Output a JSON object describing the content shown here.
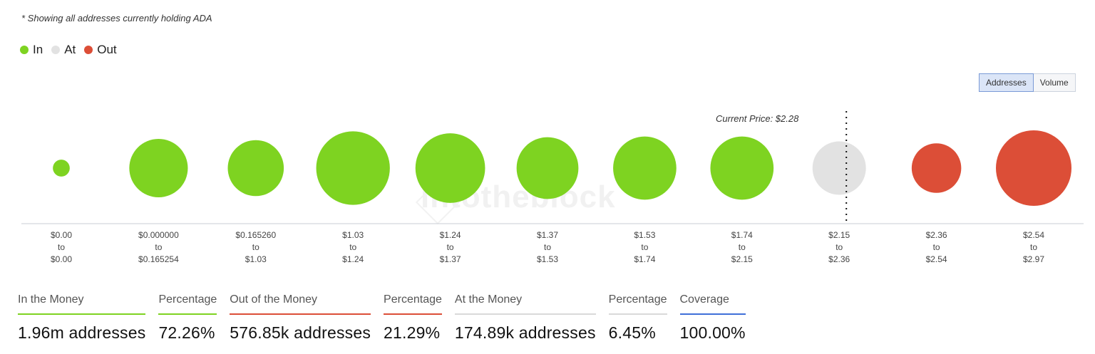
{
  "note": "* Showing all addresses currently holding ADA",
  "legend": [
    {
      "label": "In",
      "color": "#7ed321"
    },
    {
      "label": "At",
      "color": "#e2e2e2"
    },
    {
      "label": "Out",
      "color": "#dc4e37"
    }
  ],
  "toggle": {
    "addresses": "Addresses",
    "volume": "Volume",
    "active": "addresses"
  },
  "watermark": "intotheblock",
  "current_price_label": "Current Price: $2.28",
  "chart_data": {
    "type": "bubble",
    "title": "",
    "current_price": 2.28,
    "size_metric": "relative bubble area (estimated, 0-1)",
    "buckets": [
      {
        "from": "$0.00",
        "to": "$0.00",
        "status": "In",
        "size": 0.05
      },
      {
        "from": "$0.000000",
        "to": "$0.165254",
        "status": "In",
        "size": 0.6
      },
      {
        "from": "$0.165260",
        "to": "$1.03",
        "status": "In",
        "size": 0.55
      },
      {
        "from": "$1.03",
        "to": "$1.24",
        "status": "In",
        "size": 0.95
      },
      {
        "from": "$1.24",
        "to": "$1.37",
        "status": "In",
        "size": 0.85
      },
      {
        "from": "$1.37",
        "to": "$1.53",
        "status": "In",
        "size": 0.67
      },
      {
        "from": "$1.53",
        "to": "$1.74",
        "status": "In",
        "size": 0.7
      },
      {
        "from": "$1.74",
        "to": "$2.15",
        "status": "In",
        "size": 0.7
      },
      {
        "from": "$2.15",
        "to": "$2.36",
        "status": "At",
        "size": 0.5
      },
      {
        "from": "$2.36",
        "to": "$2.54",
        "status": "Out",
        "size": 0.43
      },
      {
        "from": "$2.54",
        "to": "$2.97",
        "status": "Out",
        "size": 1.0
      }
    ],
    "range_word": "to"
  },
  "stats": [
    {
      "label": "In the Money",
      "value": "1.96m addresses",
      "color": "#7ed321"
    },
    {
      "label": "Percentage",
      "value": "72.26%",
      "color": "#7ed321"
    },
    {
      "label": "Out of the Money",
      "value": "576.85k addresses",
      "color": "#dc4e37"
    },
    {
      "label": "Percentage",
      "value": "21.29%",
      "color": "#dc4e37"
    },
    {
      "label": "At the Money",
      "value": "174.89k addresses",
      "color": "#d9d9d9"
    },
    {
      "label": "Percentage",
      "value": "6.45%",
      "color": "#d9d9d9"
    },
    {
      "label": "Coverage",
      "value": "100.00%",
      "color": "#3f6fd8"
    }
  ]
}
